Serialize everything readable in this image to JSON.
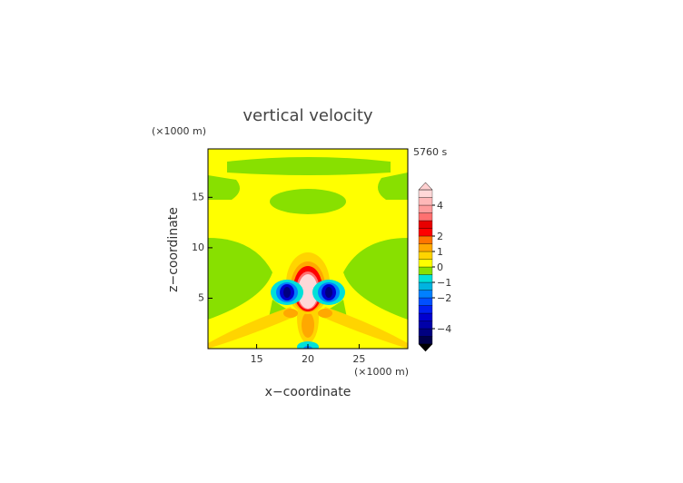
{
  "chart_data": {
    "type": "contour",
    "title": "vertical velocity",
    "xlabel": "x−coordinate",
    "ylabel": "z−coordinate",
    "x_unit": "(×1000 m)",
    "y_unit": "(×1000 m)",
    "time_label": "5760 s",
    "xlim": [
      10.25,
      29.75
    ],
    "ylim": [
      0,
      19.8
    ],
    "xticks": [
      15,
      20,
      25
    ],
    "yticks": [
      5,
      10,
      15
    ],
    "levels": [
      -5,
      -4.5,
      -4,
      -3.5,
      -3,
      -2.5,
      -2,
      -1.5,
      -1,
      -0.5,
      0,
      0.5,
      1,
      1.5,
      2,
      2.5,
      3,
      3.5,
      4,
      4.5,
      5
    ],
    "colors": [
      "#00004a",
      "#000080",
      "#0000a8",
      "#0000d0",
      "#0020f0",
      "#0050ff",
      "#0080ff",
      "#00b4e0",
      "#00e0d8",
      "#88e000",
      "#ffff00",
      "#ffd400",
      "#ffa800",
      "#ff7400",
      "#ff0000",
      "#e80000",
      "#ff7070",
      "#ff9c9c",
      "#ffb8b8",
      "#ffd8d8"
    ],
    "under_color": "#000000",
    "over_color": "#ffd0d0",
    "colorbar_ticks": [
      {
        "value": -4,
        "label": "−4"
      },
      {
        "value": -2,
        "label": "−2"
      },
      {
        "value": -1,
        "label": "−1"
      },
      0,
      1,
      2,
      4
    ]
  }
}
